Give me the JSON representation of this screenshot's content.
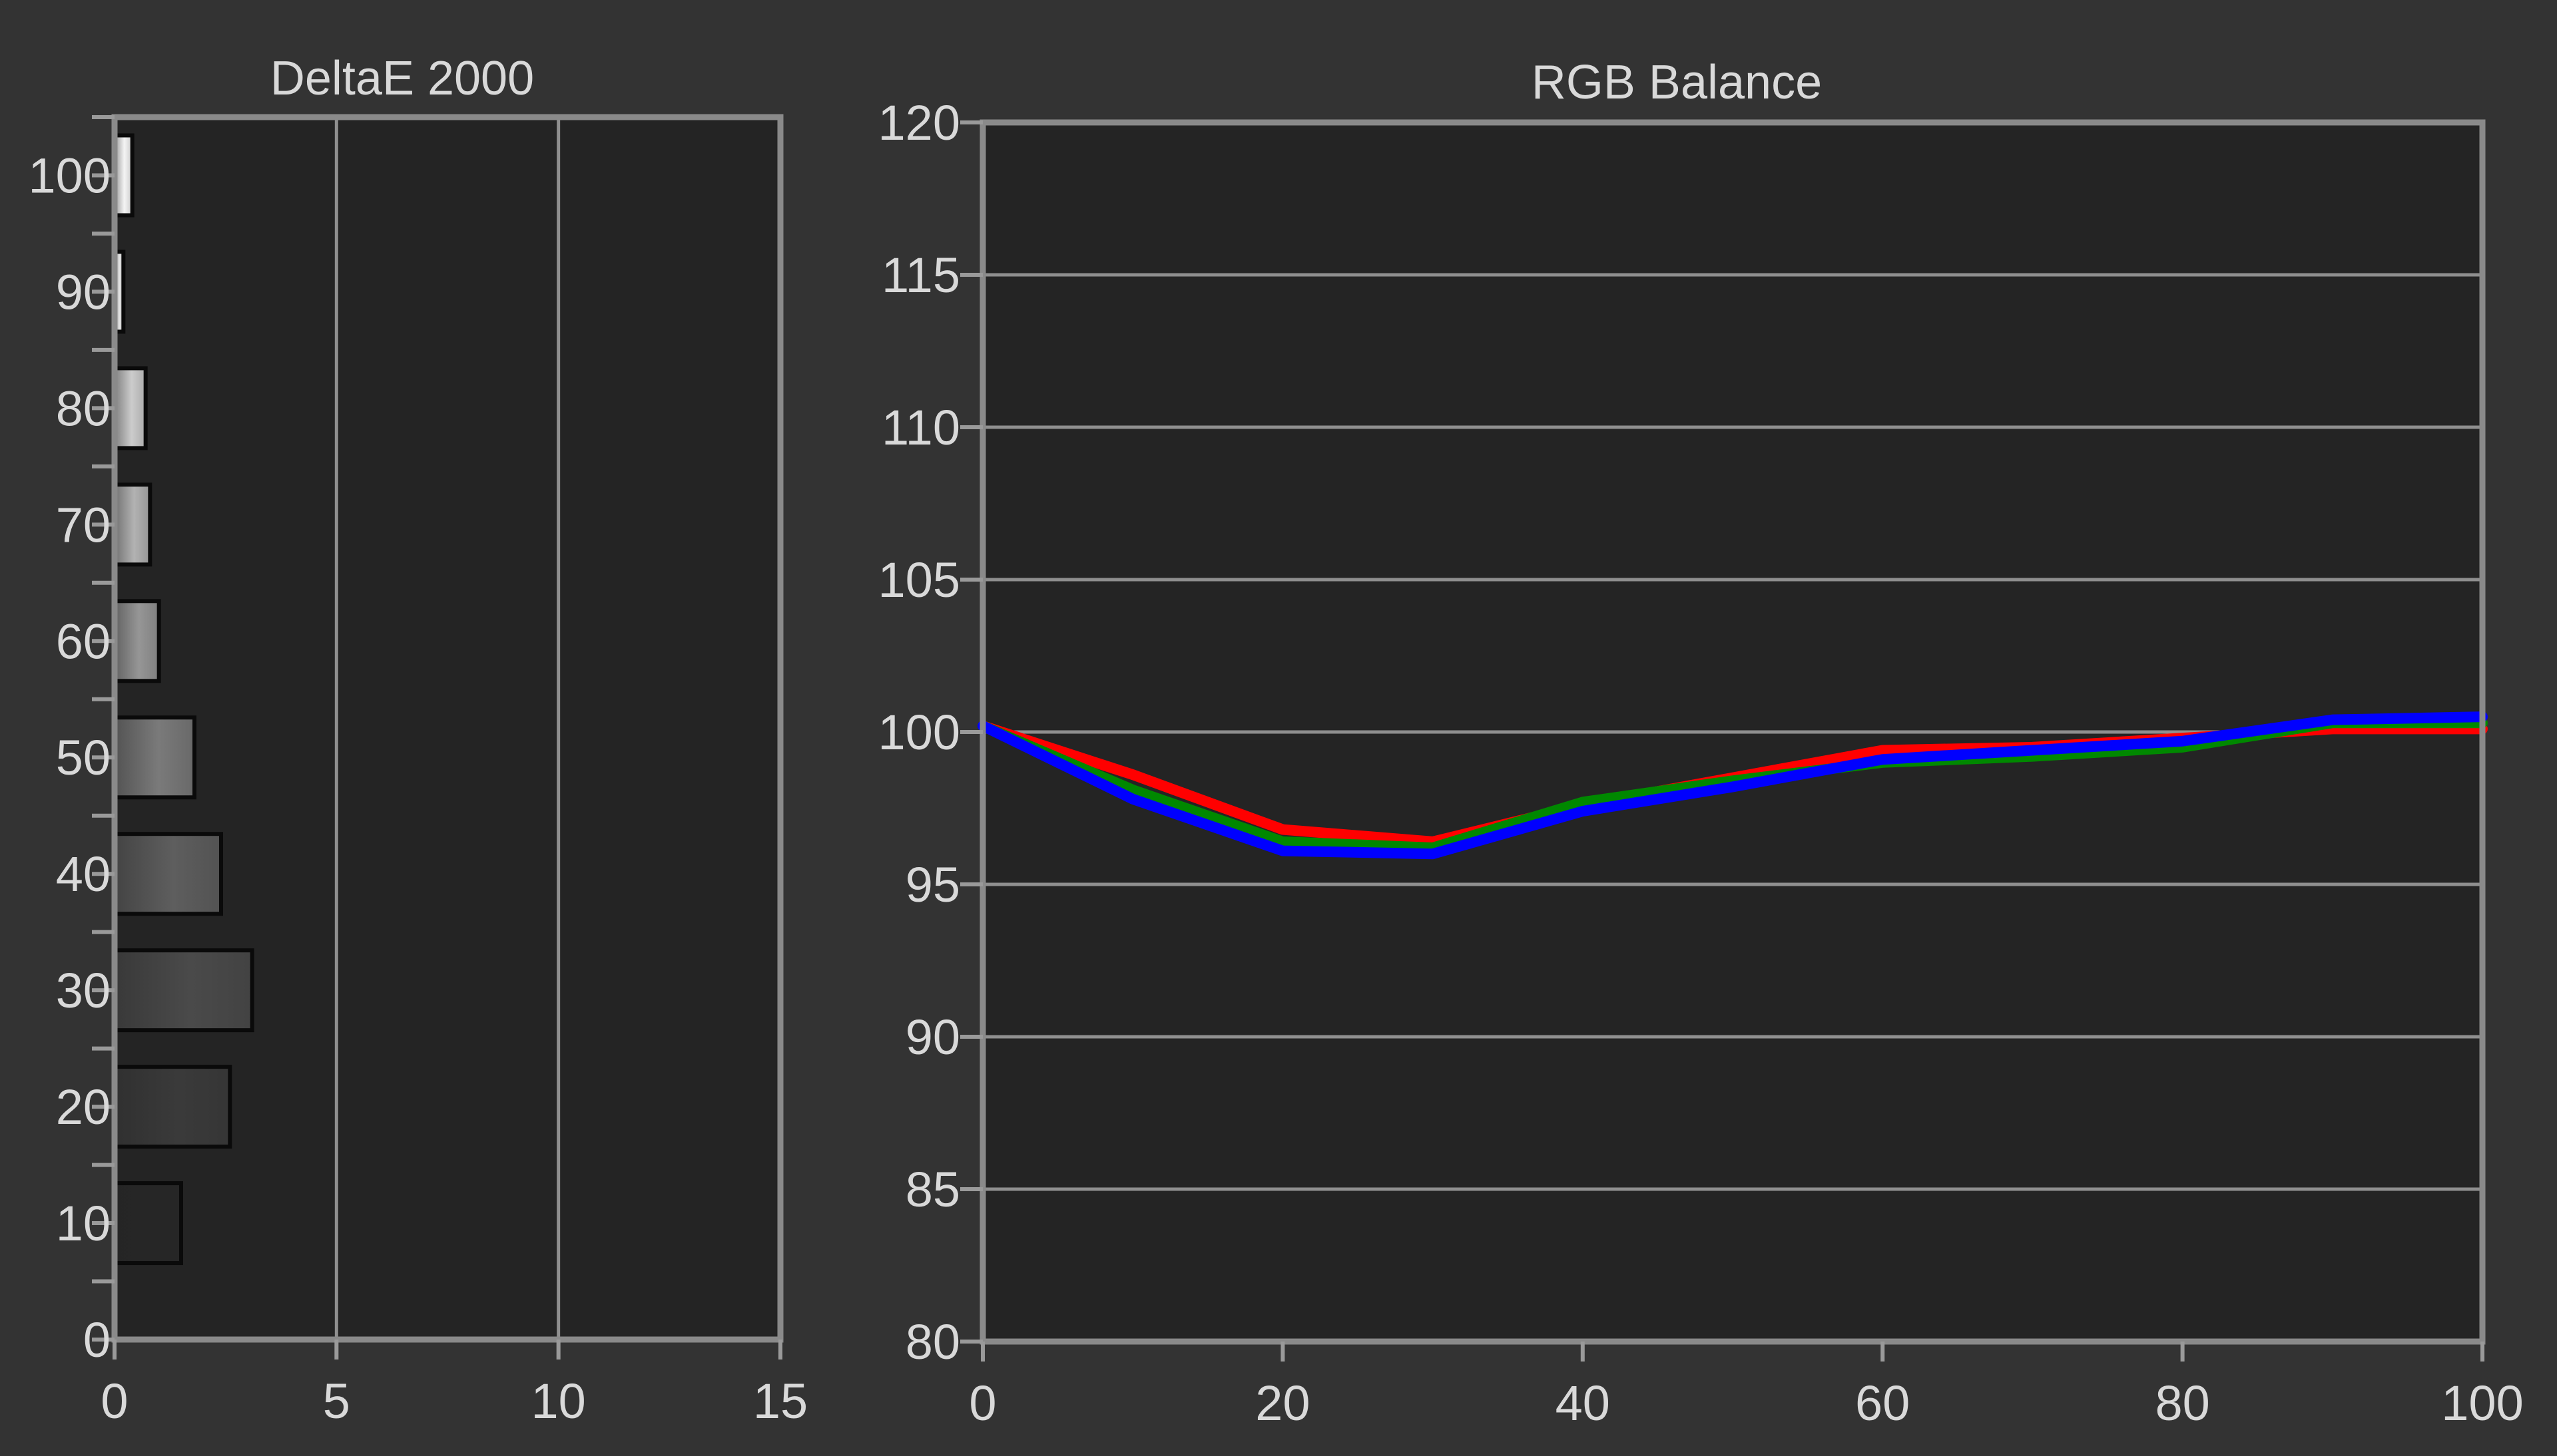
{
  "chart_data": [
    {
      "type": "bar",
      "orientation": "horizontal",
      "title": "DeltaE 2000",
      "categories": [
        "10",
        "20",
        "30",
        "40",
        "50",
        "60",
        "70",
        "80",
        "90",
        "100"
      ],
      "values": [
        1.5,
        2.6,
        3.1,
        2.4,
        1.8,
        1.0,
        0.8,
        0.7,
        0.2,
        0.4
      ],
      "bar_shades": [
        "#262626",
        "#3a3a3a",
        "#4a4a4a",
        "#5e5e5e",
        "#7a7a7a",
        "#969696",
        "#b2b2b2",
        "#cccccc",
        "#e4e4e4",
        "#f4f4f4"
      ],
      "xlim": [
        0,
        15
      ],
      "x_ticks": [
        0,
        5,
        10,
        15
      ],
      "ylim": [
        0,
        105
      ],
      "y_tick_labels": [
        "0",
        "10",
        "20",
        "30",
        "40",
        "50",
        "60",
        "70",
        "80",
        "90",
        "100"
      ],
      "grid": "vertical"
    },
    {
      "type": "line",
      "title": "RGB Balance",
      "x": [
        0,
        10,
        20,
        30,
        40,
        50,
        60,
        70,
        80,
        90,
        100
      ],
      "series": [
        {
          "color": "#ff0000",
          "values": [
            100.2,
            98.6,
            96.8,
            96.4,
            97.6,
            98.5,
            99.4,
            99.5,
            99.8,
            100.1,
            100.1
          ]
        },
        {
          "color": "#008800",
          "values": [
            100.2,
            98.1,
            96.4,
            96.2,
            97.7,
            98.4,
            99.0,
            99.2,
            99.5,
            100.3,
            100.3
          ]
        },
        {
          "color": "#0000ff",
          "values": [
            100.2,
            97.8,
            96.1,
            96.0,
            97.4,
            98.2,
            99.1,
            99.4,
            99.7,
            100.4,
            100.5
          ]
        }
      ],
      "xlim": [
        0,
        100
      ],
      "x_ticks": [
        0,
        20,
        40,
        60,
        80,
        100
      ],
      "ylim": [
        80,
        120
      ],
      "y_ticks": [
        80,
        85,
        90,
        95,
        100,
        105,
        110,
        115,
        120
      ],
      "grid": "horizontal"
    }
  ]
}
